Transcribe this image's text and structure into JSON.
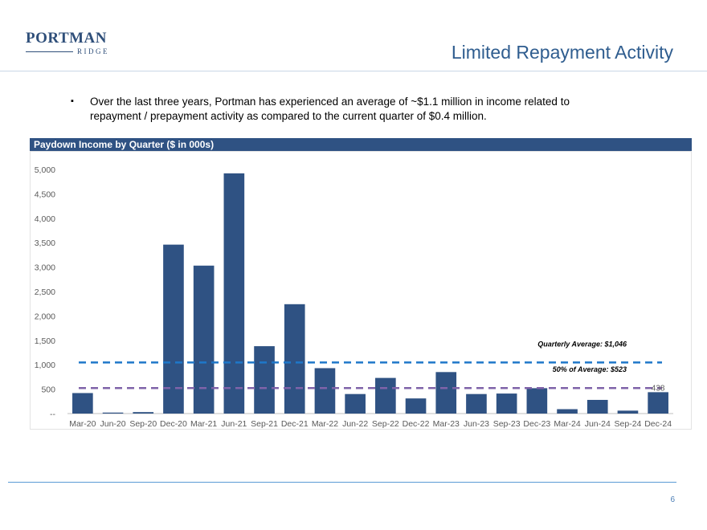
{
  "header": {
    "logo_main": "PORTMAN",
    "logo_sub": "RIDGE",
    "title": "Limited Repayment Activity"
  },
  "bullet": {
    "mark": "▪",
    "text": "Over the last three years, Portman has experienced an average of ~$1.1 million in income related to repayment / prepayment activity as compared to the current quarter of $0.4 million."
  },
  "chart_header": "Paydown Income by Quarter ($ in 000s)",
  "chart_data": {
    "type": "bar",
    "title": "Paydown Income by Quarter ($ in 000s)",
    "categories": [
      "Mar-20",
      "Jun-20",
      "Sep-20",
      "Dec-20",
      "Mar-21",
      "Jun-21",
      "Sep-21",
      "Dec-21",
      "Mar-22",
      "Jun-22",
      "Sep-22",
      "Dec-22",
      "Mar-23",
      "Jun-23",
      "Sep-23",
      "Dec-23",
      "Mar-24",
      "Jun-24",
      "Sep-24",
      "Dec-24"
    ],
    "values": [
      420,
      20,
      30,
      3460,
      3030,
      4920,
      1380,
      2240,
      930,
      400,
      730,
      310,
      850,
      400,
      410,
      520,
      90,
      280,
      60,
      438
    ],
    "ylim": [
      0,
      5000
    ],
    "yticks": [
      0,
      500,
      1000,
      1500,
      2000,
      2500,
      3000,
      3500,
      4000,
      4500,
      5000
    ],
    "ytick_labels": [
      "--",
      "500",
      "1,000",
      "1,500",
      "2,000",
      "2,500",
      "3,000",
      "3,500",
      "4,000",
      "4,500",
      "5,000"
    ],
    "data_labels": [
      {
        "index": 19,
        "text": "438"
      }
    ],
    "reference_lines": [
      {
        "value": 1046,
        "label": "Quarterly Average: $1,046",
        "color": "#1f77c9"
      },
      {
        "value": 523,
        "label": "50% of Average: $523",
        "color": "#7f63a9"
      }
    ],
    "bar_color": "#2f5283",
    "grid": false
  },
  "footer": {
    "page_number": "6"
  }
}
